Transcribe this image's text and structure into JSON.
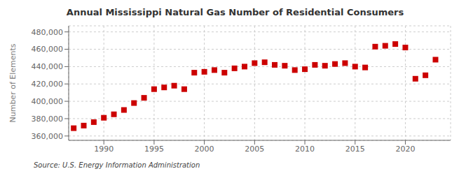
{
  "chart_data": {
    "type": "scatter",
    "title": "Annual Mississippi Natural Gas Number of Residential Consumers",
    "ylabel": "Number of Elements",
    "annotations": [
      "Source: U.S. Energy Information Administration"
    ],
    "color": "#cc0000",
    "marker": "square",
    "x": [
      1987,
      1988,
      1989,
      1990,
      1991,
      1992,
      1993,
      1994,
      1995,
      1996,
      1997,
      1998,
      1999,
      2000,
      2001,
      2002,
      2003,
      2004,
      2005,
      2006,
      2007,
      2008,
      2009,
      2010,
      2011,
      2012,
      2013,
      2014,
      2015,
      2016,
      2017,
      2018,
      2019,
      2020,
      2021,
      2022,
      2023
    ],
    "values": [
      369000,
      372000,
      376000,
      381000,
      385000,
      390000,
      398000,
      404000,
      414000,
      416000,
      418000,
      414000,
      433000,
      434000,
      436000,
      433000,
      438000,
      440000,
      444000,
      445000,
      442000,
      441000,
      436000,
      437000,
      442000,
      441000,
      443000,
      444000,
      440000,
      439000,
      463000,
      464000,
      466000,
      462000,
      426000,
      430000,
      448000
    ],
    "xlim": [
      1986.5,
      2024.5
    ],
    "ylim": [
      355000,
      487000
    ],
    "xticks": [
      1990,
      1995,
      2000,
      2005,
      2010,
      2015,
      2020
    ],
    "yticks": [
      {
        "value": 360000,
        "label": "360,000"
      },
      {
        "value": 380000,
        "label": "380,000"
      },
      {
        "value": 400000,
        "label": "400,000"
      },
      {
        "value": 420000,
        "label": "420,000"
      },
      {
        "value": 440000,
        "label": "440,000"
      },
      {
        "value": 460000,
        "label": "460,000"
      },
      {
        "value": 480000,
        "label": "480,000"
      }
    ],
    "grid": true
  }
}
